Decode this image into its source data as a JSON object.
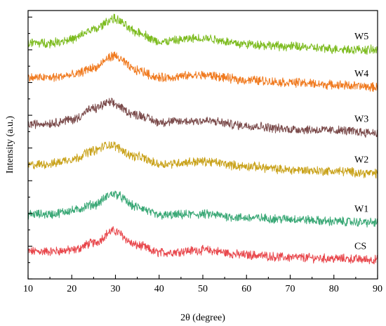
{
  "chart_data": {
    "type": "line",
    "xlabel": "2θ (degree)",
    "ylabel": "Intensity (a.u.)",
    "xlim": [
      10,
      90
    ],
    "xticks": [
      10,
      20,
      30,
      40,
      50,
      60,
      70,
      80,
      90
    ],
    "yticks_labeled": false,
    "grid": false,
    "legend": "none",
    "series": [
      {
        "name": "CS",
        "color": "#e8474c",
        "baseline": 0.09,
        "peak_x": 29.5,
        "peak_height": 0.085,
        "points": [
          [
            10,
            0.115
          ],
          [
            15,
            0.115
          ],
          [
            20,
            0.12
          ],
          [
            25,
            0.15
          ],
          [
            29.5,
            0.2
          ],
          [
            35,
            0.14
          ],
          [
            40,
            0.11
          ],
          [
            50,
            0.12
          ],
          [
            60,
            0.1
          ],
          [
            70,
            0.09
          ],
          [
            80,
            0.085
          ],
          [
            90,
            0.08
          ]
        ]
      },
      {
        "name": "W1",
        "color": "#3aa876",
        "baseline": 0.235,
        "peak_x": 29.5,
        "peak_height": 0.09,
        "points": [
          [
            10,
            0.27
          ],
          [
            15,
            0.27
          ],
          [
            20,
            0.285
          ],
          [
            25,
            0.31
          ],
          [
            29.5,
            0.355
          ],
          [
            35,
            0.3
          ],
          [
            40,
            0.265
          ],
          [
            50,
            0.27
          ],
          [
            60,
            0.255
          ],
          [
            70,
            0.25
          ],
          [
            80,
            0.24
          ],
          [
            90,
            0.235
          ]
        ]
      },
      {
        "name": "W2",
        "color": "#c9a21a",
        "baseline": 0.44,
        "peak_x": 28.5,
        "peak_height": 0.085,
        "points": [
          [
            10,
            0.475
          ],
          [
            15,
            0.48
          ],
          [
            20,
            0.5
          ],
          [
            25,
            0.535
          ],
          [
            28.5,
            0.56
          ],
          [
            35,
            0.51
          ],
          [
            40,
            0.48
          ],
          [
            50,
            0.49
          ],
          [
            60,
            0.47
          ],
          [
            70,
            0.455
          ],
          [
            80,
            0.45
          ],
          [
            90,
            0.44
          ]
        ]
      },
      {
        "name": "W3",
        "color": "#7a4a4a",
        "baseline": 0.61,
        "peak_x": 28.5,
        "peak_height": 0.09,
        "points": [
          [
            10,
            0.645
          ],
          [
            15,
            0.65
          ],
          [
            20,
            0.665
          ],
          [
            25,
            0.71
          ],
          [
            28.5,
            0.735
          ],
          [
            35,
            0.685
          ],
          [
            40,
            0.655
          ],
          [
            50,
            0.66
          ],
          [
            60,
            0.64
          ],
          [
            70,
            0.625
          ],
          [
            80,
            0.62
          ],
          [
            90,
            0.61
          ]
        ]
      },
      {
        "name": "W4",
        "color": "#f07a1f",
        "baseline": 0.795,
        "peak_x": 29.5,
        "peak_height": 0.085,
        "points": [
          [
            10,
            0.84
          ],
          [
            15,
            0.84
          ],
          [
            20,
            0.85
          ],
          [
            25,
            0.88
          ],
          [
            29.5,
            0.93
          ],
          [
            35,
            0.87
          ],
          [
            40,
            0.84
          ],
          [
            50,
            0.85
          ],
          [
            60,
            0.83
          ],
          [
            70,
            0.82
          ],
          [
            80,
            0.81
          ],
          [
            90,
            0.8
          ]
        ]
      },
      {
        "name": "W5",
        "color": "#7cbb1e",
        "baseline": 0.95,
        "peak_x": 29.5,
        "peak_height": 0.09,
        "points": [
          [
            10,
            0.985
          ],
          [
            15,
            0.985
          ],
          [
            20,
            1.0
          ],
          [
            25,
            1.04
          ],
          [
            29.5,
            1.085
          ],
          [
            35,
            1.03
          ],
          [
            40,
            0.99
          ],
          [
            50,
            1.005
          ],
          [
            60,
            0.98
          ],
          [
            70,
            0.97
          ],
          [
            80,
            0.96
          ],
          [
            90,
            0.955
          ]
        ]
      }
    ]
  }
}
